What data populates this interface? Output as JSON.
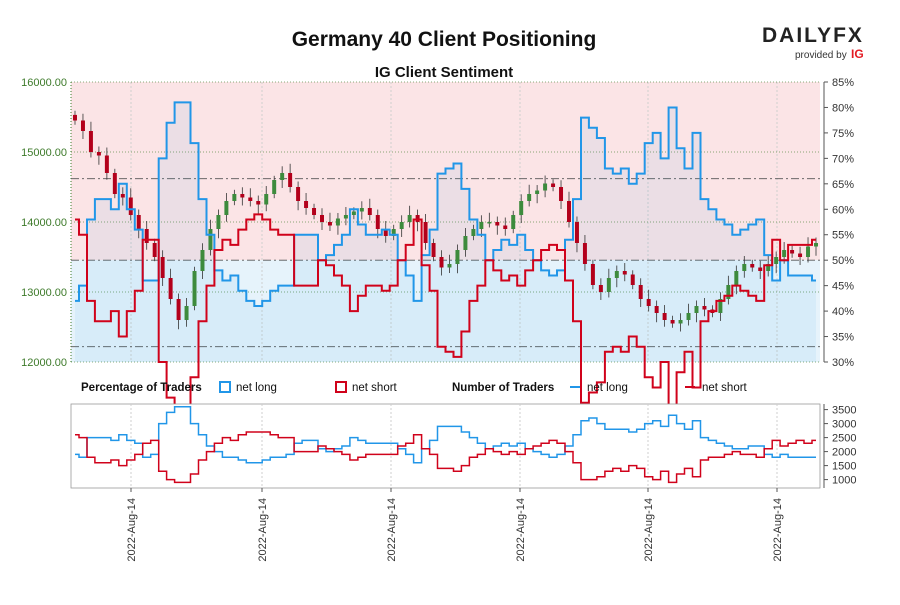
{
  "header": {
    "title": "Germany 40 Client Positioning",
    "subtitle": "IG Client Sentiment"
  },
  "logo": {
    "text": "DAILYFX",
    "provided_by": "provided by",
    "ig": "IG"
  },
  "colors": {
    "long": "#2196e8",
    "short": "#d0021b",
    "short_zone": "#fbe4e6",
    "long_zone": "#e6f3fb",
    "candle_up": "#3d8b3d",
    "candle_down": "#b3001b",
    "price_axis": "#3d7a2a"
  },
  "legend": {
    "pct_heading": "Percentage of Traders",
    "pct_long": "net long",
    "pct_short": "net short",
    "num_heading": "Number of Traders",
    "num_long": "net long",
    "num_short": "net short"
  },
  "chart_data": [
    {
      "type": "candlestick",
      "title": "Germany 40 Client Positioning",
      "subtitle": "IG Client Sentiment",
      "price_axis_ticks": [
        "16000.00",
        "15000.00",
        "14000.00",
        "13000.00",
        "12000.00"
      ],
      "price_ylim": [
        12000,
        16000
      ],
      "pct_axis_ticks": [
        "85%",
        "80%",
        "75%",
        "70%",
        "65%",
        "60%",
        "55%",
        "50%",
        "45%",
        "40%",
        "35%",
        "30%"
      ],
      "pct_ylim": [
        30,
        85
      ],
      "reference_lines_pct": [
        33,
        50,
        66
      ],
      "x_tick_labels": [
        "2022-Aug-14",
        "2022-Aug-14",
        "2022-Aug-14",
        "2022-Aug-14",
        "2022-Aug-14",
        "2022-Aug-14"
      ],
      "price_close": [
        15450,
        15300,
        15000,
        14950,
        14700,
        14400,
        14350,
        14100,
        13900,
        13700,
        13500,
        13200,
        12900,
        12600,
        12800,
        13300,
        13600,
        13900,
        14100,
        14300,
        14400,
        14350,
        14300,
        14250,
        14400,
        14600,
        14700,
        14500,
        14300,
        14200,
        14100,
        14000,
        13950,
        14050,
        14100,
        14150,
        14200,
        14100,
        13900,
        13800,
        13900,
        14000,
        14100,
        14000,
        13700,
        13500,
        13350,
        13400,
        13600,
        13800,
        13900,
        14000,
        14000,
        13950,
        13900,
        14100,
        14300,
        14400,
        14450,
        14550,
        14500,
        14300,
        14000,
        13700,
        13400,
        13100,
        13000,
        13200,
        13300,
        13250,
        13100,
        12900,
        12800,
        12700,
        12600,
        12550,
        12600,
        12700,
        12800,
        12750,
        12700,
        12900,
        13100,
        13300,
        13400,
        13350,
        13300,
        13400,
        13500,
        13600,
        13550,
        13500,
        13650,
        13700
      ],
      "series": [
        {
          "name": "net long",
          "pct_values": [
            42,
            45,
            58,
            62,
            62,
            60,
            65,
            60,
            56,
            46,
            46,
            70,
            77,
            81,
            81,
            73,
            62,
            55,
            48,
            46,
            47,
            44,
            42,
            41,
            42,
            44,
            45,
            45,
            55,
            55,
            55,
            50,
            51,
            53,
            55,
            60,
            57,
            55,
            55,
            56,
            55,
            50,
            47,
            42,
            51,
            56,
            67,
            68,
            69,
            64,
            58,
            55,
            50,
            52,
            54,
            53,
            55,
            52,
            50,
            48,
            47,
            48,
            54,
            62,
            78,
            76,
            74,
            68,
            67,
            68,
            65,
            67,
            73,
            75,
            70,
            80,
            72,
            68,
            75,
            62,
            60,
            58,
            57,
            55,
            56,
            57,
            58,
            51,
            46,
            50,
            47,
            47,
            47,
            46
          ],
          "counts": [
            1900,
            1800,
            2500,
            2500,
            2500,
            2400,
            2600,
            2400,
            2300,
            1800,
            1900,
            3000,
            3400,
            3600,
            3600,
            3000,
            2600,
            2200,
            2000,
            1800,
            1800,
            1700,
            1600,
            1600,
            1700,
            1800,
            1800,
            1900,
            2300,
            2400,
            2400,
            2100,
            2000,
            2100,
            2200,
            2500,
            2400,
            2300,
            2300,
            2300,
            2300,
            2100,
            1900,
            1600,
            2100,
            2400,
            2900,
            2900,
            2900,
            2700,
            2500,
            2300,
            2100,
            2200,
            2300,
            2200,
            2300,
            2100,
            2000,
            1900,
            1800,
            1900,
            2200,
            2600,
            3100,
            3200,
            3000,
            2800,
            2800,
            2800,
            2700,
            2800,
            3000,
            3100,
            2900,
            3300,
            3000,
            2800,
            3100,
            2500,
            2400,
            2300,
            2200,
            2100,
            2100,
            2200,
            2200,
            1900,
            1800,
            1900,
            1800,
            1800,
            1800,
            1800
          ]
        },
        {
          "name": "net short",
          "pct_values": [
            58,
            55,
            42,
            38,
            38,
            40,
            35,
            40,
            44,
            54,
            54,
            30,
            23,
            19,
            19,
            27,
            38,
            45,
            52,
            54,
            53,
            56,
            58,
            59,
            58,
            56,
            55,
            55,
            45,
            45,
            45,
            50,
            49,
            47,
            45,
            40,
            43,
            45,
            45,
            44,
            45,
            50,
            53,
            58,
            49,
            44,
            33,
            32,
            31,
            36,
            42,
            45,
            50,
            48,
            46,
            47,
            45,
            48,
            50,
            52,
            53,
            52,
            46,
            38,
            22,
            24,
            26,
            32,
            33,
            32,
            35,
            33,
            27,
            25,
            30,
            20,
            28,
            32,
            25,
            38,
            40,
            42,
            43,
            45,
            44,
            43,
            42,
            49,
            54,
            50,
            53,
            53,
            53,
            54
          ],
          "counts": [
            2600,
            2500,
            1800,
            1600,
            1600,
            1700,
            1500,
            1700,
            1900,
            2300,
            2400,
            1300,
            1000,
            900,
            900,
            1200,
            1700,
            2000,
            2300,
            2500,
            2400,
            2600,
            2700,
            2700,
            2700,
            2600,
            2500,
            2500,
            2000,
            2000,
            2000,
            2200,
            2100,
            2000,
            1900,
            1700,
            1800,
            1900,
            1900,
            1900,
            1900,
            2200,
            2300,
            2600,
            2100,
            1900,
            1400,
            1400,
            1300,
            1500,
            1800,
            1900,
            2100,
            2000,
            1900,
            2000,
            1900,
            2100,
            2200,
            2300,
            2400,
            2300,
            2000,
            1600,
            1000,
            1000,
            1100,
            1300,
            1400,
            1300,
            1500,
            1400,
            1100,
            1000,
            1300,
            900,
            1200,
            1400,
            1100,
            1700,
            1800,
            1800,
            1900,
            2000,
            1900,
            1900,
            1800,
            2100,
            2400,
            2200,
            2300,
            2400,
            2300,
            2400
          ]
        }
      ]
    },
    {
      "type": "line",
      "title": "Number of Traders",
      "count_axis_ticks": [
        "3500",
        "3000",
        "2500",
        "2000",
        "1500",
        "1000"
      ],
      "count_ylim": [
        700,
        3700
      ],
      "series_names": [
        "net long",
        "net short"
      ]
    }
  ]
}
